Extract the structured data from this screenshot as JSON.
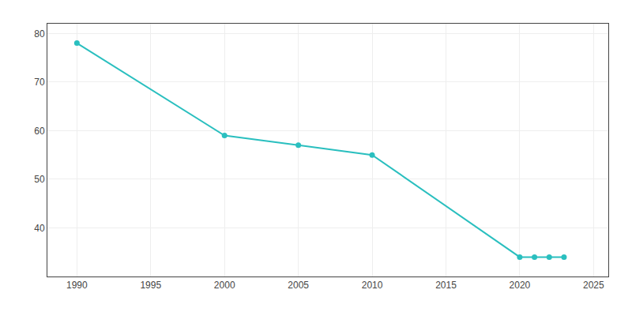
{
  "chart_data": {
    "type": "line",
    "x": [
      1990,
      2000,
      2005,
      2010,
      2020,
      2021,
      2022,
      2023
    ],
    "values": [
      78,
      59,
      57,
      55,
      34,
      34,
      34,
      34
    ],
    "color": "#2abfbf",
    "marker": "circle",
    "xlim": [
      1988,
      2026
    ],
    "ylim": [
      30,
      82
    ],
    "xticks": [
      1990,
      1995,
      2000,
      2005,
      2010,
      2015,
      2020,
      2025
    ],
    "yticks": [
      40,
      50,
      60,
      70,
      80
    ],
    "grid": true
  }
}
